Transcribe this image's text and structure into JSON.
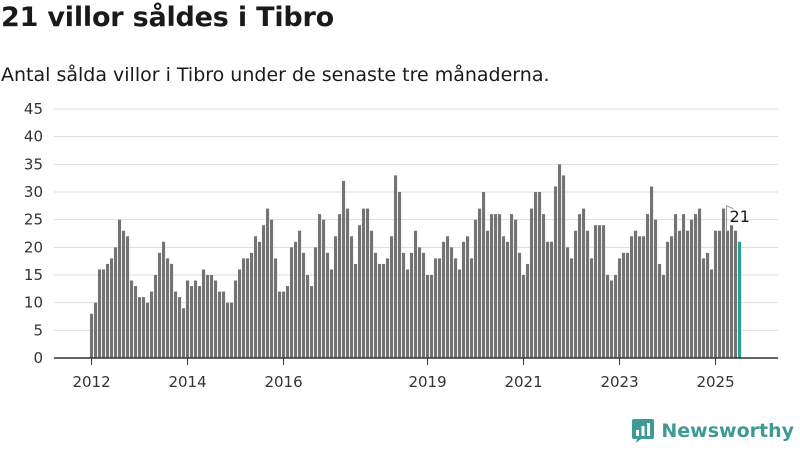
{
  "header": {
    "title": "21 villor såldes i Tibro",
    "subtitle": "Antal sålda villor i Tibro under de senaste tre månaderna."
  },
  "brand": {
    "name": "Newsworthy",
    "logo_icon": "newsworthy-logo-icon"
  },
  "colors": {
    "bar": "#737373",
    "highlight": "#2a9d96",
    "grid": "#dddddd",
    "axis": "#333333",
    "brand": "#3d9a94"
  },
  "chart_data": {
    "type": "bar",
    "title": "21 villor såldes i Tibro",
    "subtitle": "Antal sålda villor i Tibro under de senaste tre månaderna.",
    "xlabel": "",
    "ylabel": "",
    "ylim": [
      0,
      45
    ],
    "y_ticks": [
      0,
      5,
      10,
      15,
      20,
      25,
      30,
      35,
      40,
      45
    ],
    "x_ticks": [
      {
        "label": "2012",
        "index": 0
      },
      {
        "label": "2014",
        "index": 24
      },
      {
        "label": "2016",
        "index": 48
      },
      {
        "label": "2019",
        "index": 84
      },
      {
        "label": "2021",
        "index": 108
      },
      {
        "label": "2023",
        "index": 132
      },
      {
        "label": "2025",
        "index": 156
      }
    ],
    "grid": "horizontal",
    "start_period": "2012-01",
    "frequency": "monthly",
    "highlight_index": 162,
    "highlight_label": "21",
    "values": [
      8,
      10,
      16,
      16,
      17,
      18,
      20,
      25,
      23,
      22,
      14,
      13,
      11,
      11,
      10,
      12,
      15,
      19,
      21,
      18,
      17,
      12,
      11,
      9,
      14,
      13,
      14,
      13,
      16,
      15,
      15,
      14,
      12,
      12,
      10,
      10,
      14,
      16,
      18,
      18,
      19,
      22,
      21,
      24,
      27,
      25,
      18,
      12,
      12,
      13,
      20,
      21,
      23,
      19,
      15,
      13,
      20,
      26,
      25,
      19,
      16,
      22,
      26,
      32,
      27,
      22,
      17,
      24,
      27,
      27,
      23,
      19,
      17,
      17,
      18,
      22,
      33,
      30,
      19,
      16,
      19,
      23,
      20,
      19,
      15,
      15,
      18,
      18,
      21,
      22,
      20,
      18,
      16,
      21,
      22,
      18,
      25,
      27,
      30,
      23,
      26,
      26,
      26,
      22,
      21,
      26,
      25,
      19,
      15,
      17,
      27,
      30,
      30,
      26,
      21,
      21,
      31,
      35,
      33,
      20,
      18,
      23,
      26,
      27,
      23,
      18,
      24,
      24,
      24,
      15,
      14,
      15,
      18,
      19,
      19,
      22,
      23,
      22,
      22,
      26,
      31,
      25,
      17,
      15,
      21,
      22,
      26,
      23,
      26,
      23,
      25,
      26,
      27,
      18,
      19,
      16,
      23,
      23,
      27,
      23,
      24,
      23,
      21
    ]
  }
}
